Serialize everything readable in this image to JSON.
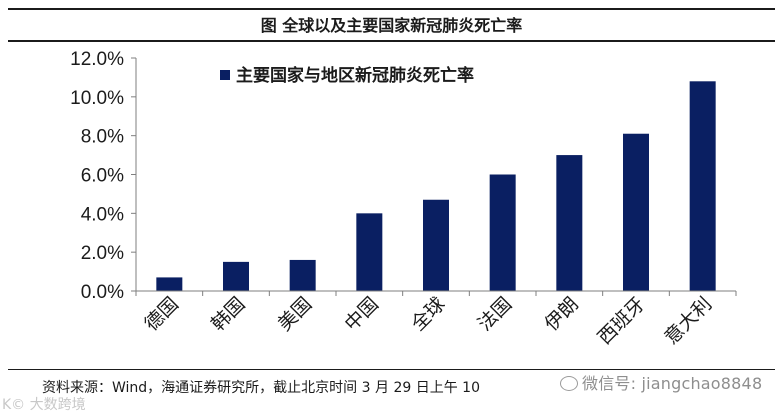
{
  "header": {
    "title": "图 全球以及主要国家新冠肺炎死亡率"
  },
  "footer": {
    "source": "资料来源：Wind，海通证券研究所，截止北京时间 3 月 29 日上午 10",
    "watermark_right": "微信号: jiangchao8848",
    "watermark_left": "K© 大数跨境"
  },
  "colors": {
    "bar": "#0a1f62",
    "axis": "#7f7f7f",
    "text": "#1b1b1b"
  },
  "icons": [
    "wechat-icon"
  ],
  "chart_data": {
    "type": "bar",
    "categories": [
      "德国",
      "韩国",
      "美国",
      "中国",
      "全球",
      "法国",
      "伊朗",
      "西班牙",
      "意大利"
    ],
    "series": [
      {
        "name": "主要国家与地区新冠肺炎死亡率",
        "values": [
          0.7,
          1.5,
          1.6,
          4.0,
          4.7,
          6.0,
          7.0,
          8.1,
          10.8
        ]
      }
    ],
    "ylim": [
      0,
      12
    ],
    "yticks": [
      "0.0%",
      "2.0%",
      "4.0%",
      "6.0%",
      "8.0%",
      "10.0%",
      "12.0%"
    ],
    "ytick_values": [
      0,
      2,
      4,
      6,
      8,
      10,
      12
    ],
    "legend_position": "top-left",
    "grid": false,
    "xlabel": "",
    "ylabel": ""
  }
}
